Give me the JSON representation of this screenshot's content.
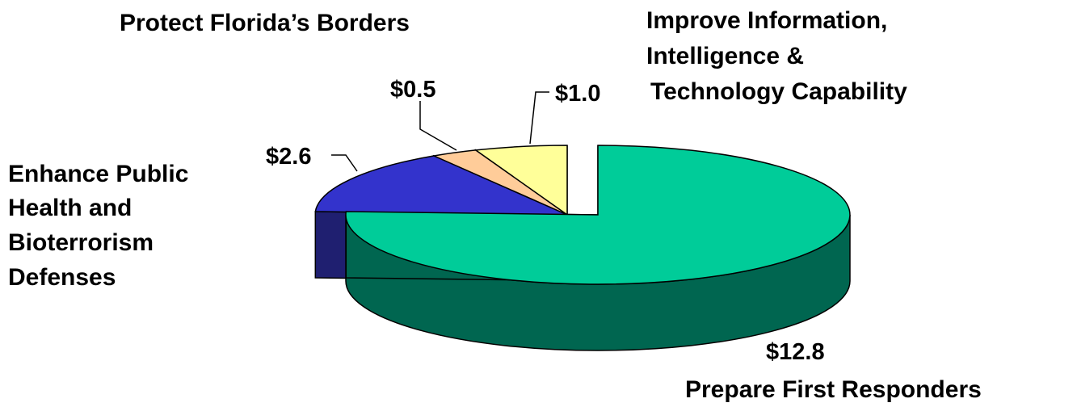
{
  "chart_data": {
    "type": "pie",
    "style": "3d-exploded",
    "title": "",
    "categories": [
      "Prepare First Responders",
      "Enhance Public Health and Bioterrorism Defenses",
      "Protect Florida’s Borders",
      "Improve Information, Intelligence & Technology Capability"
    ],
    "values": [
      12.8,
      2.6,
      0.5,
      1.0
    ],
    "value_labels": [
      "$12.8",
      "$2.6",
      "$0.5",
      "$1.0"
    ],
    "category_label_lines": [
      [
        "Prepare First Responders"
      ],
      [
        "Enhance Public",
        "Health and",
        "Bioterrorism",
        "Defenses"
      ],
      [
        "Protect Florida’s Borders"
      ],
      [
        "Improve Information,",
        "Intelligence &",
        "Technology Capability"
      ]
    ],
    "colors": [
      "#00CC99",
      "#3333CC",
      "#FFCC99",
      "#FFFF99"
    ],
    "side_colors": [
      "#006650",
      "#1F1F70",
      "#8A6A4A",
      "#7A7A40"
    ],
    "legend": "none",
    "exploded_slice": "Prepare First Responders"
  }
}
